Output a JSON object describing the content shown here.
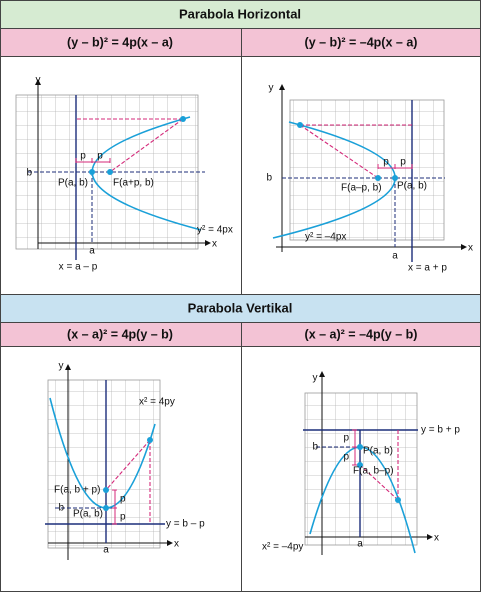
{
  "sections": [
    {
      "title": "Parabola Horizontal",
      "columns": [
        {
          "formula": "(y – b)² = 4p(x – a)",
          "labels": [
            "y",
            "x",
            "b",
            "a",
            "p",
            "p",
            "P(a, b)",
            "F(a+p, b)",
            "y² = 4px",
            "x = a – p"
          ]
        },
        {
          "formula": "(y – b)² = –4p(x – a)",
          "labels": [
            "y",
            "x",
            "b",
            "a",
            "p",
            "p",
            "F(a–p, b)",
            "P(a, b)",
            "y² = –4px",
            "x = a + p"
          ]
        }
      ]
    },
    {
      "title": "Parabola Vertikal",
      "columns": [
        {
          "formula": "(x – a)² = 4p(y – b)",
          "labels": [
            "y",
            "x",
            "b",
            "a",
            "x² = 4py",
            "F(a, b + p)",
            "P(a, b)",
            "p",
            "p",
            "y = b – p"
          ]
        },
        {
          "formula": "(x – a)² = –4p(y – b)",
          "labels": [
            "y",
            "x",
            "b",
            "a",
            "p",
            "p",
            "P(a, b)",
            "F(a, b–p)",
            "y = b + p",
            "x² = –4py"
          ]
        }
      ]
    }
  ]
}
